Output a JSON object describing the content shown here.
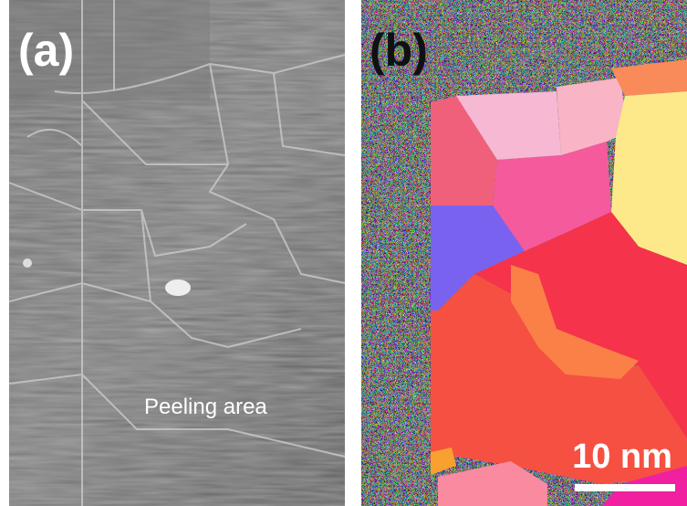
{
  "panels": [
    {
      "label": "(a)",
      "annotation": "Peeling area"
    },
    {
      "label": "(b)",
      "scale_bar": "10 nm"
    }
  ]
}
